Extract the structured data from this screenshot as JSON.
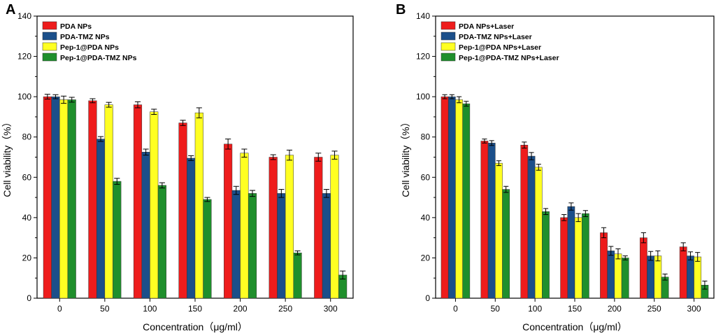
{
  "chart_data": [
    {
      "type": "bar",
      "panel": "A",
      "xlabel": "Concentration（μg/ml）",
      "ylabel": "Cell viability（%）",
      "ylim": [
        0,
        140
      ],
      "yticks": [
        0,
        20,
        40,
        60,
        80,
        100,
        120,
        140
      ],
      "categories": [
        "0",
        "50",
        "100",
        "150",
        "200",
        "250",
        "300"
      ],
      "legend_position": "top-left",
      "series": [
        {
          "name": "PDA NPs",
          "color": "#ee1c1c",
          "values": [
            100,
            98,
            96,
            87,
            76.5,
            70,
            70
          ],
          "errors": [
            1.2,
            1.0,
            1.5,
            1.3,
            2.5,
            1.2,
            2.0
          ]
        },
        {
          "name": "PDA-TMZ NPs",
          "color": "#1b4f8a",
          "values": [
            100,
            79,
            72.5,
            69.5,
            53.5,
            52,
            52
          ],
          "errors": [
            1.0,
            1.2,
            1.5,
            1.2,
            2.0,
            2.0,
            2.0
          ]
        },
        {
          "name": "Pep-1@PDA NPs",
          "color": "#ffff22",
          "values": [
            98.5,
            96,
            92.5,
            92,
            72,
            71,
            71
          ],
          "errors": [
            1.8,
            1.2,
            1.3,
            2.5,
            2.0,
            2.5,
            2.0
          ]
        },
        {
          "name": "Pep-1@PDA-TMZ NPs",
          "color": "#1f8f2c",
          "values": [
            98.5,
            58,
            56,
            49,
            52,
            22.5,
            11.5
          ],
          "errors": [
            1.2,
            1.5,
            1.3,
            1.0,
            1.5,
            1.0,
            2.0
          ]
        }
      ]
    },
    {
      "type": "bar",
      "panel": "B",
      "xlabel": "Concentration（μg/ml）",
      "ylabel": "Cell viability（%）",
      "ylim": [
        0,
        140
      ],
      "yticks": [
        0,
        20,
        40,
        60,
        80,
        100,
        120,
        140
      ],
      "categories": [
        "0",
        "50",
        "100",
        "150",
        "200",
        "250",
        "300"
      ],
      "legend_position": "top-left",
      "series": [
        {
          "name": "PDA NPs+Laser",
          "color": "#ee1c1c",
          "values": [
            100,
            78,
            76,
            40,
            32.5,
            30,
            25.5
          ],
          "errors": [
            1.0,
            1.0,
            1.5,
            1.5,
            2.5,
            2.5,
            2.0
          ]
        },
        {
          "name": "PDA-TMZ NPs+Laser",
          "color": "#1b4f8a",
          "values": [
            100,
            77,
            70.5,
            45.5,
            23.5,
            21,
            21
          ],
          "errors": [
            1.0,
            1.2,
            1.8,
            1.8,
            2.2,
            2.2,
            2.0
          ]
        },
        {
          "name": "Pep-1@PDA NPs+Laser",
          "color": "#ffff22",
          "values": [
            98.5,
            67,
            65,
            40,
            22,
            21,
            20.5
          ],
          "errors": [
            1.5,
            1.2,
            1.5,
            2.0,
            2.5,
            2.5,
            2.2
          ]
        },
        {
          "name": "Pep-1@PDA-TMZ NPs+Laser",
          "color": "#1f8f2c",
          "values": [
            96.5,
            54,
            43,
            42,
            20,
            10.5,
            6.5
          ],
          "errors": [
            1.2,
            1.5,
            1.5,
            1.5,
            1.0,
            1.5,
            2.0
          ]
        }
      ]
    }
  ]
}
